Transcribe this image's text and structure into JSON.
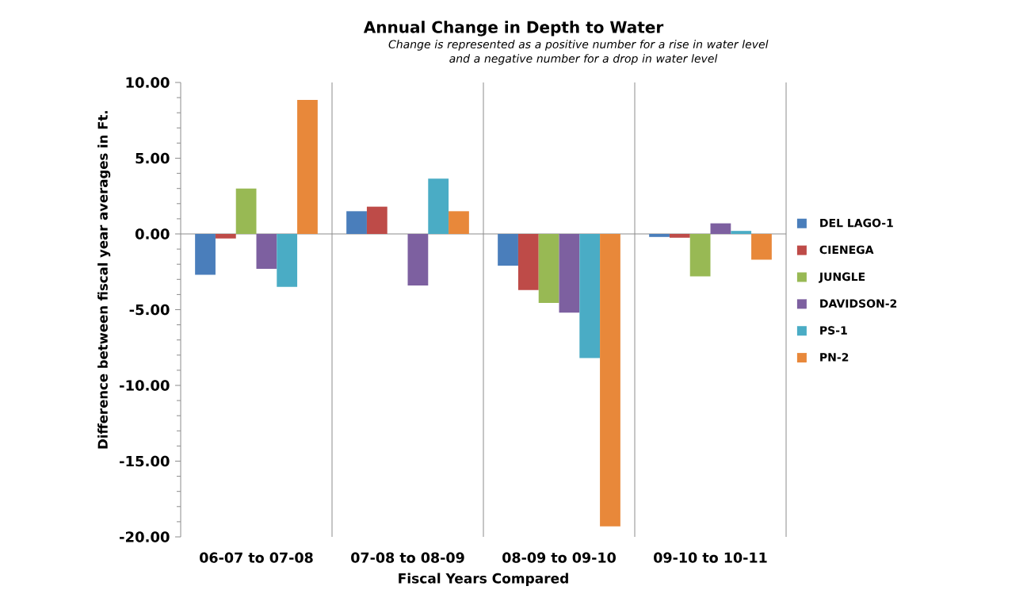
{
  "chart_data": {
    "type": "bar",
    "title": "Annual Change in Depth to Water",
    "subtitle": "Change is represented as a positive number for a rise in water level and a negative number for a drop in water level",
    "xlabel": "Fiscal Years Compared",
    "ylabel": "Difference between fiscal year averages in Ft.",
    "categories": [
      "06-07 to 07-08",
      "07-08 to 08-09",
      "08-09 to 09-10",
      "09-10 to 10-11"
    ],
    "series": [
      {
        "name": "DEL LAGO-1",
        "color": "#4a7ebb",
        "values": [
          -2.7,
          1.5,
          -2.1,
          -0.2
        ]
      },
      {
        "name": "CIENEGA",
        "color": "#be4b48",
        "values": [
          -0.3,
          1.8,
          -3.7,
          -0.25
        ]
      },
      {
        "name": "JUNGLE",
        "color": "#98b954",
        "values": [
          3.0,
          null,
          -4.55,
          -2.8
        ]
      },
      {
        "name": "DAVIDSON-2",
        "color": "#7d60a0",
        "values": [
          -2.3,
          -3.4,
          -5.2,
          0.7
        ]
      },
      {
        "name": "PS-1",
        "color": "#4aacc5",
        "values": [
          -3.5,
          3.65,
          -8.2,
          0.2
        ]
      },
      {
        "name": "PN-2",
        "color": "#e8883a",
        "values": [
          8.85,
          1.5,
          -19.3,
          -1.7
        ]
      }
    ],
    "ylim": [
      -20,
      10
    ],
    "yticks": [
      {
        "value": -20,
        "label": "-20.00"
      },
      {
        "value": -19,
        "label": null
      },
      {
        "value": -18,
        "label": null
      },
      {
        "value": -17,
        "label": null
      },
      {
        "value": -16,
        "label": null
      },
      {
        "value": -15,
        "label": "-15.00"
      },
      {
        "value": -14,
        "label": null
      },
      {
        "value": -13,
        "label": null
      },
      {
        "value": -12,
        "label": null
      },
      {
        "value": -11,
        "label": null
      },
      {
        "value": -10,
        "label": "-10.00"
      },
      {
        "value": -9,
        "label": null
      },
      {
        "value": -8,
        "label": null
      },
      {
        "value": -7,
        "label": null
      },
      {
        "value": -6,
        "label": null
      },
      {
        "value": -5,
        "label": "-5.00"
      },
      {
        "value": -4,
        "label": null
      },
      {
        "value": -3,
        "label": null
      },
      {
        "value": -2,
        "label": null
      },
      {
        "value": -1,
        "label": null
      },
      {
        "value": 0,
        "label": "0.00"
      },
      {
        "value": 1,
        "label": null
      },
      {
        "value": 2,
        "label": null
      },
      {
        "value": 3,
        "label": null
      },
      {
        "value": 4,
        "label": null
      },
      {
        "value": 5,
        "label": "5.00"
      },
      {
        "value": 6,
        "label": null
      },
      {
        "value": 7,
        "label": null
      },
      {
        "value": 8,
        "label": null
      },
      {
        "value": 9,
        "label": null
      },
      {
        "value": 10,
        "label": "10.00"
      }
    ],
    "ref_lines": [
      {
        "axis": "y",
        "value": 0,
        "color": "#8c8c8c"
      }
    ],
    "grid": "x",
    "legend": "right"
  }
}
